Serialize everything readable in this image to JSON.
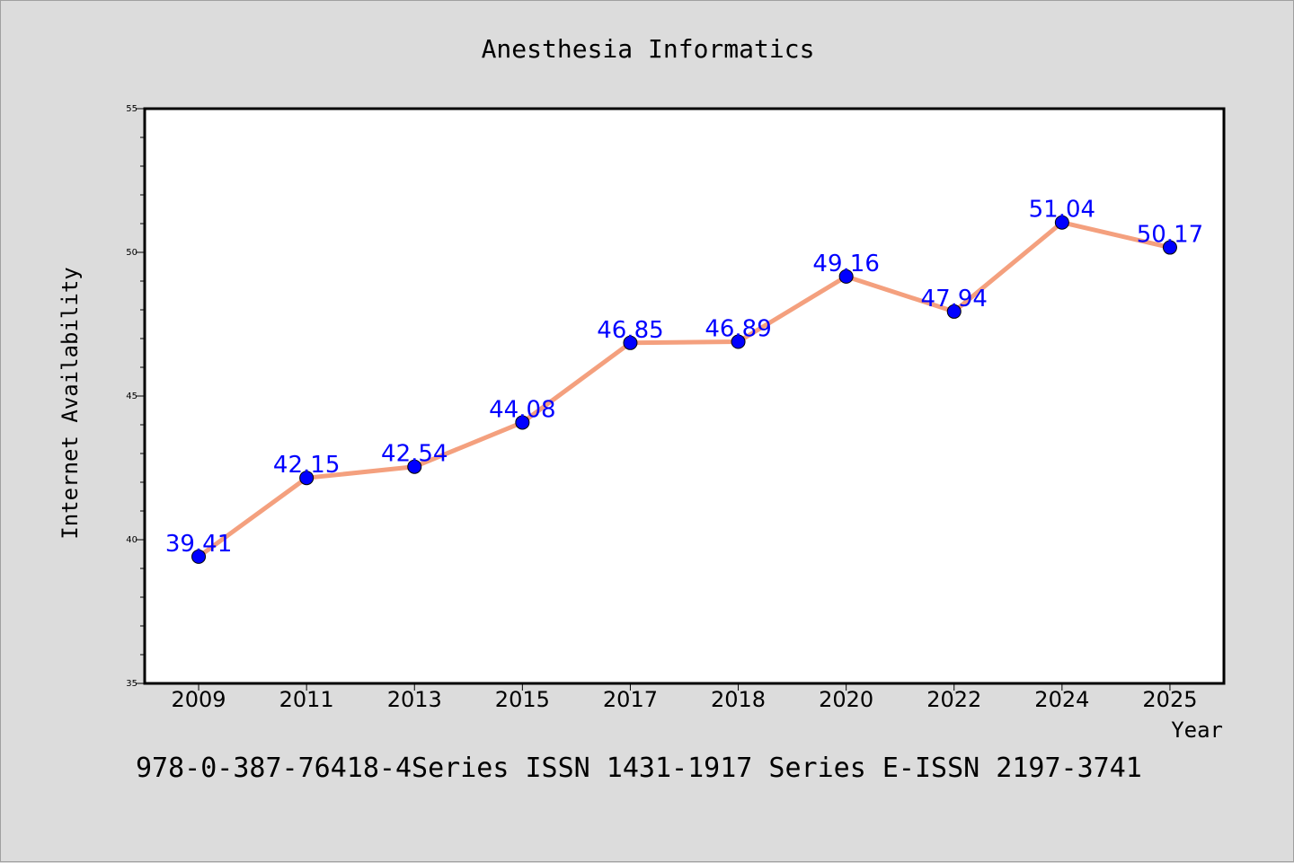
{
  "chart_data": {
    "type": "line",
    "title": "Anesthesia Informatics",
    "xlabel": "Year",
    "ylabel": "Internet Availability",
    "categories": [
      "2009",
      "2011",
      "2013",
      "2015",
      "2017",
      "2018",
      "2020",
      "2022",
      "2024",
      "2025"
    ],
    "series": [
      {
        "values": [
          39.41,
          42.15,
          42.54,
          44.08,
          46.85,
          46.89,
          49.16,
          47.94,
          51.04,
          50.17
        ]
      }
    ],
    "data_labels": [
      "39.41",
      "42.15",
      "42.54",
      "44.08",
      "46.85",
      "46.89",
      "49.16",
      "47.94",
      "51.04",
      "50.17"
    ],
    "ylim": [
      35,
      55
    ],
    "yticks": [
      35,
      40,
      45,
      50,
      55
    ],
    "grid": false,
    "legend": "none",
    "colors": {
      "line": "#f4a07e",
      "marker": "#0000ff",
      "label": "#0000ff",
      "plot_bg": "#ffffff",
      "page_bg": "#dcdcdc"
    }
  },
  "footer_text": "978-0-387-76418-4Series ISSN 1431-1917 Series E-ISSN 2197-3741"
}
